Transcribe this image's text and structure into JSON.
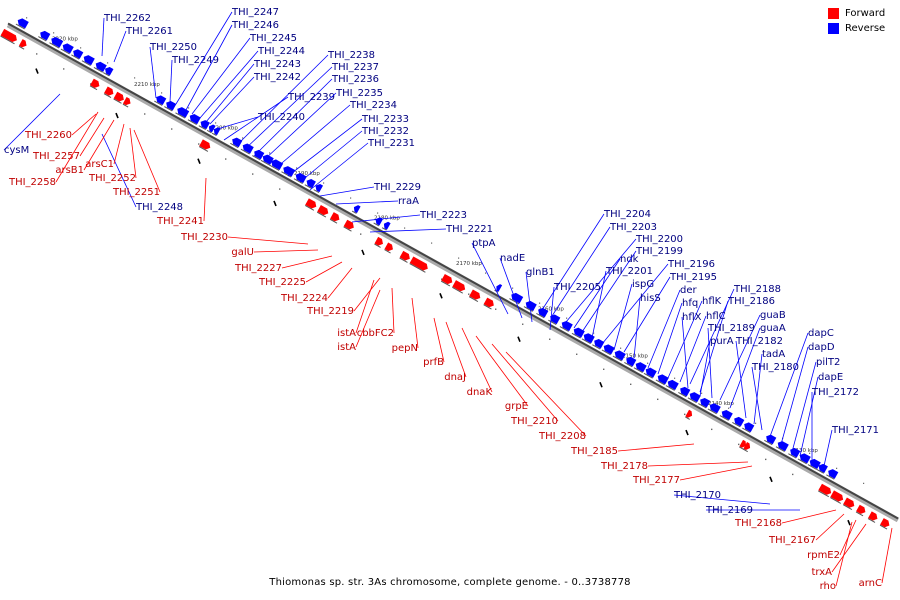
{
  "title": "Thiomonas sp. str. 3As chromosome, complete genome. - 0..3738778",
  "legend": {
    "forward_label": "Forward",
    "reverse_label": "Reverse",
    "forward_color": "#ff0000",
    "reverse_color": "#0000ff"
  },
  "colors": {
    "forward": "#ff0000",
    "reverse": "#0000ff",
    "forward_label": "#c00000",
    "reverse_label": "#000080"
  },
  "tick_labels": [
    "2220 kbp",
    "2210 kbp",
    "2200 kbp",
    "2190 kbp",
    "2180 kbp",
    "2170 kbp",
    "2160 kbp",
    "2150 kbp",
    "2140 kbp",
    "2130 kbp"
  ],
  "reverse_genes": [
    "THI_2262",
    "THI_2261",
    "THI_2250",
    "THI_2249",
    "THI_2247",
    "THI_2246",
    "THI_2245",
    "THI_2244",
    "THI_2243",
    "THI_2242",
    "THI_2238",
    "THI_2237",
    "THI_2236",
    "THI_2239",
    "THI_2235",
    "THI_2234",
    "THI_2240",
    "THI_2233",
    "THI_2232",
    "THI_2231",
    "cysM",
    "THI_2248",
    "THI_2229",
    "rraA",
    "THI_2223",
    "THI_2221",
    "THI_2204",
    "THI_2203",
    "THI_2200",
    "ptpA",
    "ndk",
    "THI_2199",
    "nadE",
    "THI_2201",
    "THI_2196",
    "glnB1",
    "ispG",
    "THI_2195",
    "hisS",
    "THI_2205",
    "der",
    "THI_2188",
    "hfq",
    "hflK",
    "THI_2186",
    "hflC",
    "guaB",
    "hflX",
    "THI_2189",
    "guaA",
    "THI_2182",
    "purA",
    "dapC",
    "tadA",
    "dapD",
    "THI_2180",
    "pilT2",
    "dapE",
    "THI_2172",
    "THI_2171",
    "THI_2170",
    "THI_2169"
  ],
  "forward_genes": [
    "THI_2260",
    "THI_2257",
    "arsC1",
    "arsB1",
    "THI_2258",
    "THI_2252",
    "THI_2251",
    "THI_2241",
    "THI_2230",
    "galU",
    "THI_2227",
    "THI_2225",
    "THI_2224",
    "THI_2219",
    "istA",
    "cbbFC2",
    "istA",
    "pepN",
    "prfB",
    "dnaJ",
    "dnaK",
    "grpE",
    "THI_2210",
    "THI_2208",
    "THI_2185",
    "THI_2178",
    "THI_2177",
    "THI_2168",
    "THI_2167",
    "rpmE2",
    "trxA",
    "rho",
    "arnC"
  ]
}
